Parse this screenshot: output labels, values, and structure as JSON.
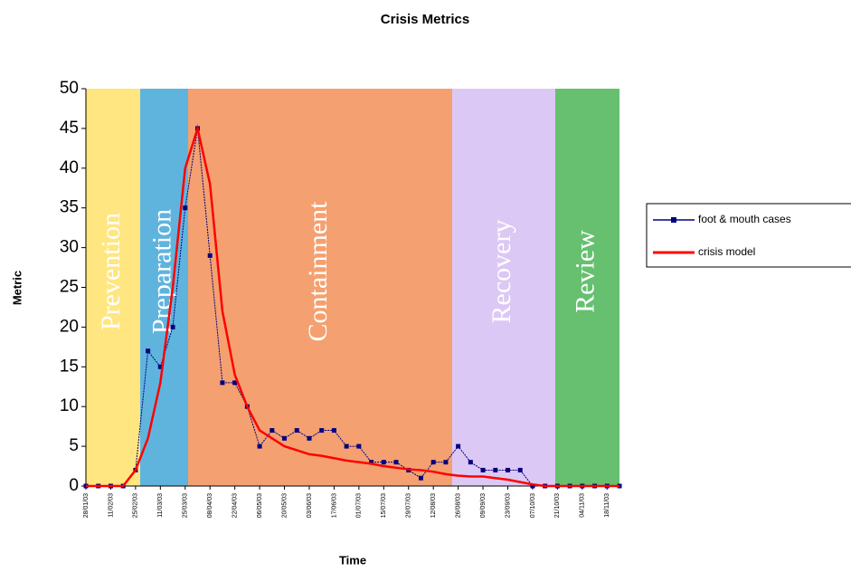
{
  "chart_data": {
    "type": "line",
    "title": "Crisis Metrics",
    "x_label": "Time",
    "y_label": "Metric",
    "categories": [
      "28/01/03",
      null,
      "11/02/03",
      null,
      "25/02/03",
      null,
      "11/03/03",
      null,
      "25/03/03",
      null,
      "08/04/03",
      null,
      "22/04/03",
      null,
      "06/05/03",
      null,
      "20/05/03",
      null,
      "03/06/03",
      null,
      "17/06/03",
      null,
      "01/07/03",
      null,
      "15/07/03",
      null,
      "29/07/03",
      null,
      "12/08/03",
      null,
      "26/08/03",
      null,
      "09/09/03",
      null,
      "23/09/03",
      null,
      "07/10/03",
      null,
      "21/10/03",
      null,
      "04/11/03",
      null,
      "18/11/03",
      null
    ],
    "series": [
      {
        "name": "foot & mouth cases",
        "color": "#000080",
        "marker": "square",
        "values": [
          0,
          0,
          0,
          0,
          2,
          17,
          15,
          20,
          35,
          45,
          29,
          13,
          13,
          10,
          5,
          7,
          6,
          7,
          6,
          7,
          7,
          5,
          5,
          3,
          3,
          3,
          2,
          1,
          3,
          3,
          5,
          3,
          2,
          2,
          2,
          2,
          0,
          0,
          0,
          0,
          0,
          0,
          0,
          0
        ]
      },
      {
        "name": "crisis model",
        "color": "#ff0000",
        "marker": "none",
        "values": [
          0,
          0,
          0,
          0,
          2,
          6,
          13,
          25,
          40,
          45,
          38,
          22,
          14,
          10,
          7,
          6,
          5,
          4.5,
          4,
          3.8,
          3.5,
          3.2,
          3,
          2.8,
          2.5,
          2.3,
          2.1,
          2,
          1.8,
          1.5,
          1.3,
          1.2,
          1.2,
          1,
          0.8,
          0.5,
          0.2,
          0,
          0,
          0,
          0,
          0,
          0,
          0
        ]
      }
    ],
    "phases": [
      {
        "label": "Prevention",
        "color": "#ffe680"
      },
      {
        "label": "Preparation",
        "color": "#5fb4de"
      },
      {
        "label": "Containment",
        "color": "#f4a070"
      },
      {
        "label": "Recovery",
        "color": "#dcc8f4"
      },
      {
        "label": "Review",
        "color": "#66c070"
      }
    ],
    "ylim": [
      0,
      50
    ],
    "yticks": [
      0,
      5,
      10,
      15,
      20,
      25,
      30,
      35,
      40,
      45,
      50
    ]
  }
}
